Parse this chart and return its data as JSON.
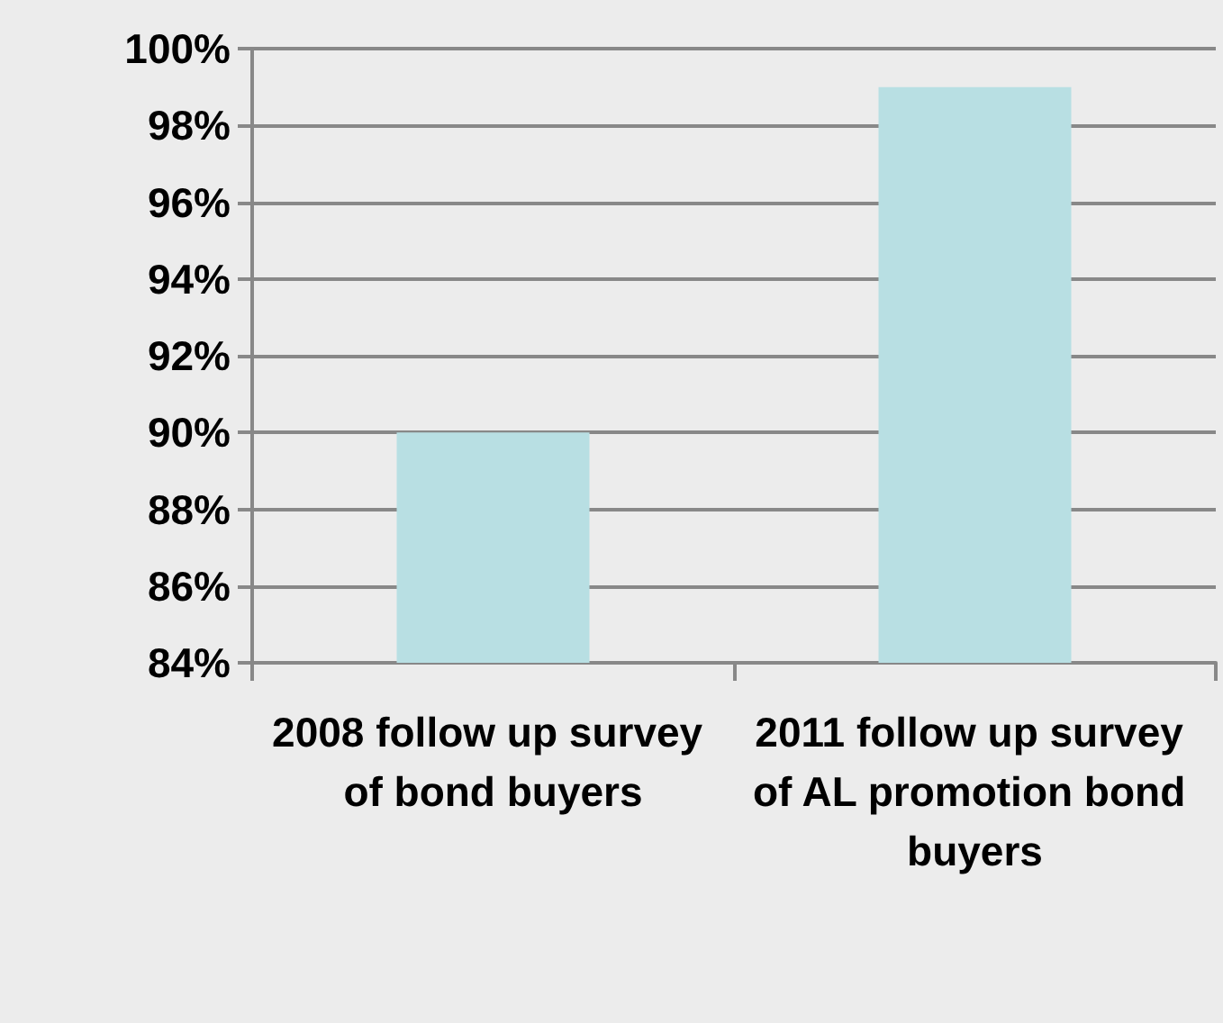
{
  "chart_data": {
    "type": "bar",
    "categories": [
      "2008 follow up survey of bond buyers",
      "2011 follow up survey of AL promotion bond buyers"
    ],
    "values": [
      90,
      99
    ],
    "color": "#b8dfe3",
    "ylim": [
      84,
      100
    ],
    "yticks": [
      {
        "value": 84,
        "label": "84%"
      },
      {
        "value": 86,
        "label": "86%"
      },
      {
        "value": 88,
        "label": "88%"
      },
      {
        "value": 90,
        "label": "90%"
      },
      {
        "value": 92,
        "label": "92%"
      },
      {
        "value": 94,
        "label": "94%"
      },
      {
        "value": 96,
        "label": "96%"
      },
      {
        "value": 98,
        "label": "98%"
      },
      {
        "value": 100,
        "label": "100%"
      }
    ],
    "grid": "y"
  }
}
